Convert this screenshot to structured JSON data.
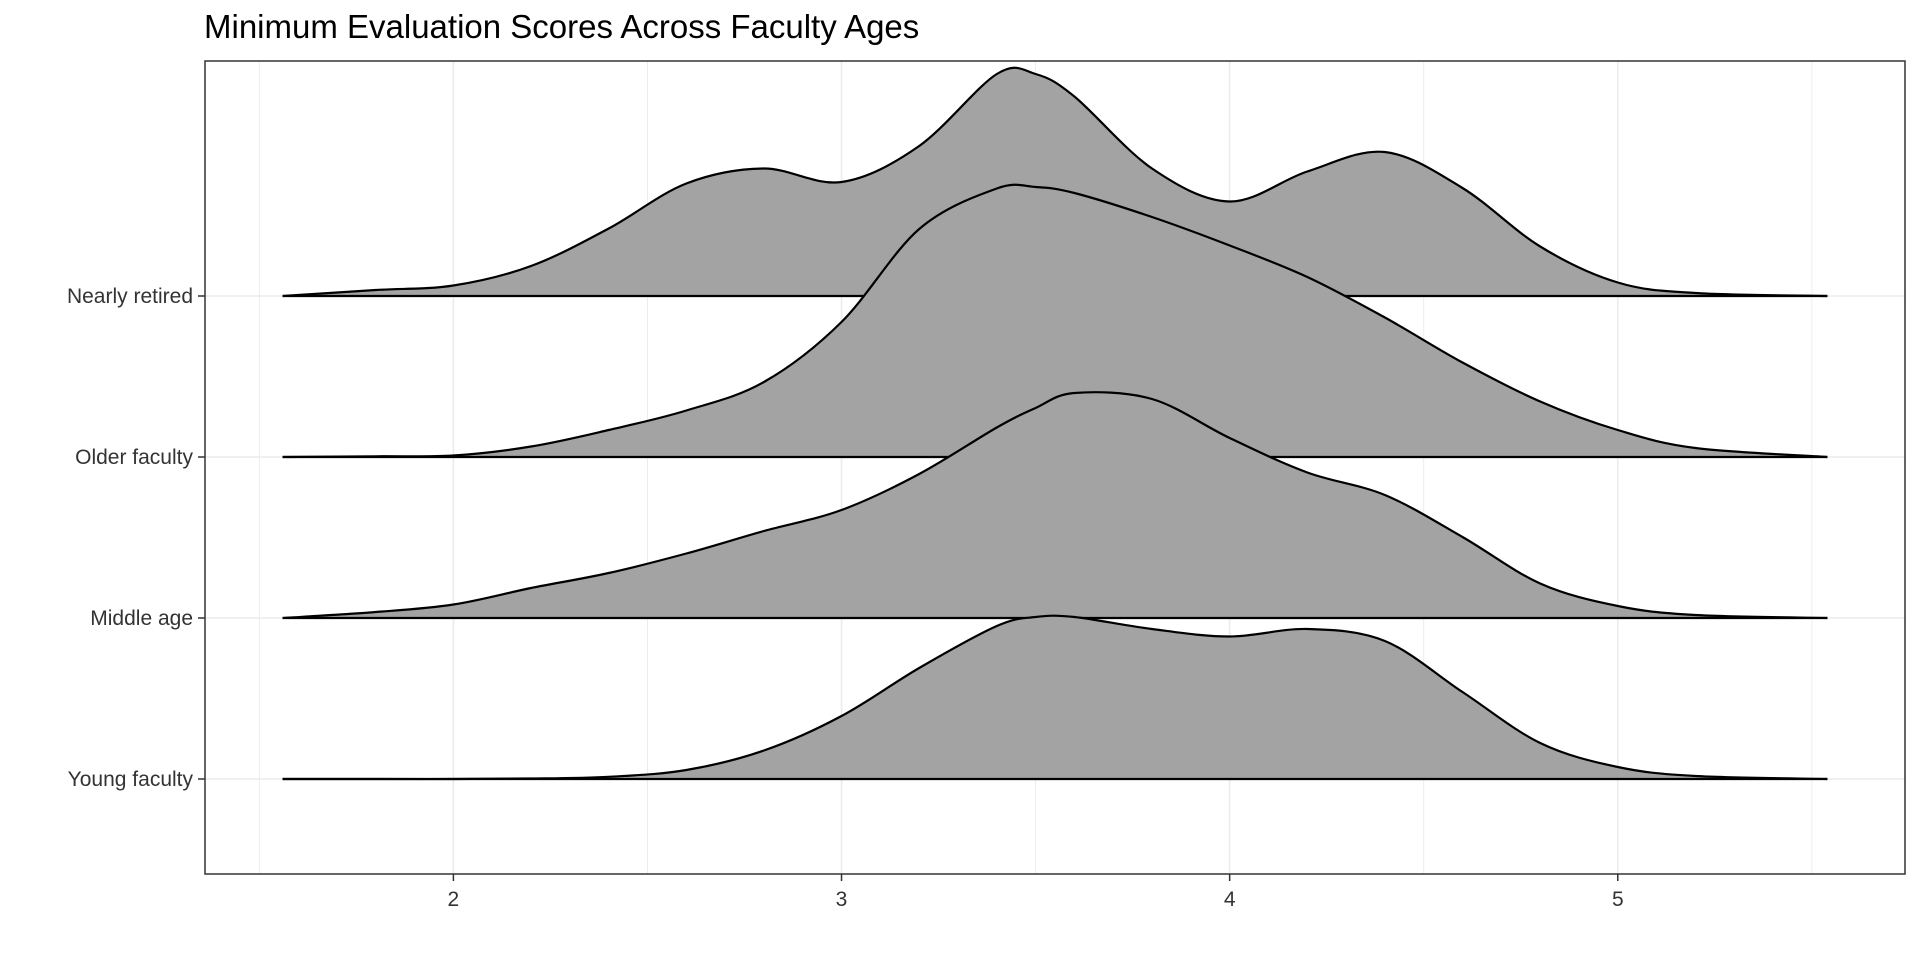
{
  "chart_data": {
    "type": "ridgeline",
    "title": "Minimum Evaluation Scores Across Faculty Ages",
    "xlabel": "",
    "ylabel": "",
    "xlim": [
      1.36,
      5.74
    ],
    "x_ticks": [
      2,
      3,
      4,
      5
    ],
    "grid": true,
    "legend": "none",
    "fill_color": "#a3a3a3",
    "line_color": "#000000",
    "categories": [
      "Young faculty",
      "Middle age",
      "Older faculty",
      "Nearly retired"
    ],
    "density_scale": 1.0,
    "x": [
      1.56,
      1.8,
      2.0,
      2.2,
      2.4,
      2.6,
      2.8,
      3.0,
      3.2,
      3.4,
      3.5,
      3.6,
      3.8,
      4.0,
      4.2,
      4.4,
      4.6,
      4.8,
      5.0,
      5.2,
      5.54
    ],
    "series": [
      {
        "name": "Young faculty",
        "values": [
          0.0,
          0.0,
          0.0,
          0.003,
          0.015,
          0.06,
          0.19,
          0.42,
          0.74,
          1.02,
          1.08,
          1.08,
          1.0,
          0.95,
          1.0,
          0.92,
          0.58,
          0.24,
          0.08,
          0.02,
          0.0
        ]
      },
      {
        "name": "Middle age",
        "values": [
          0.0,
          0.04,
          0.09,
          0.2,
          0.3,
          0.43,
          0.58,
          0.72,
          0.96,
          1.27,
          1.4,
          1.5,
          1.46,
          1.2,
          0.97,
          0.82,
          0.54,
          0.23,
          0.08,
          0.02,
          0.0
        ]
      },
      {
        "name": "Older faculty",
        "values": [
          0.0,
          0.005,
          0.01,
          0.07,
          0.18,
          0.31,
          0.5,
          0.9,
          1.52,
          1.79,
          1.8,
          1.76,
          1.6,
          1.41,
          1.2,
          0.93,
          0.63,
          0.37,
          0.18,
          0.06,
          0.0
        ]
      },
      {
        "name": "Nearly retired",
        "values": [
          0.0,
          0.04,
          0.07,
          0.2,
          0.45,
          0.75,
          0.85,
          0.76,
          1.0,
          1.48,
          1.48,
          1.33,
          0.85,
          0.63,
          0.83,
          0.96,
          0.72,
          0.33,
          0.09,
          0.02,
          0.0
        ]
      }
    ]
  }
}
